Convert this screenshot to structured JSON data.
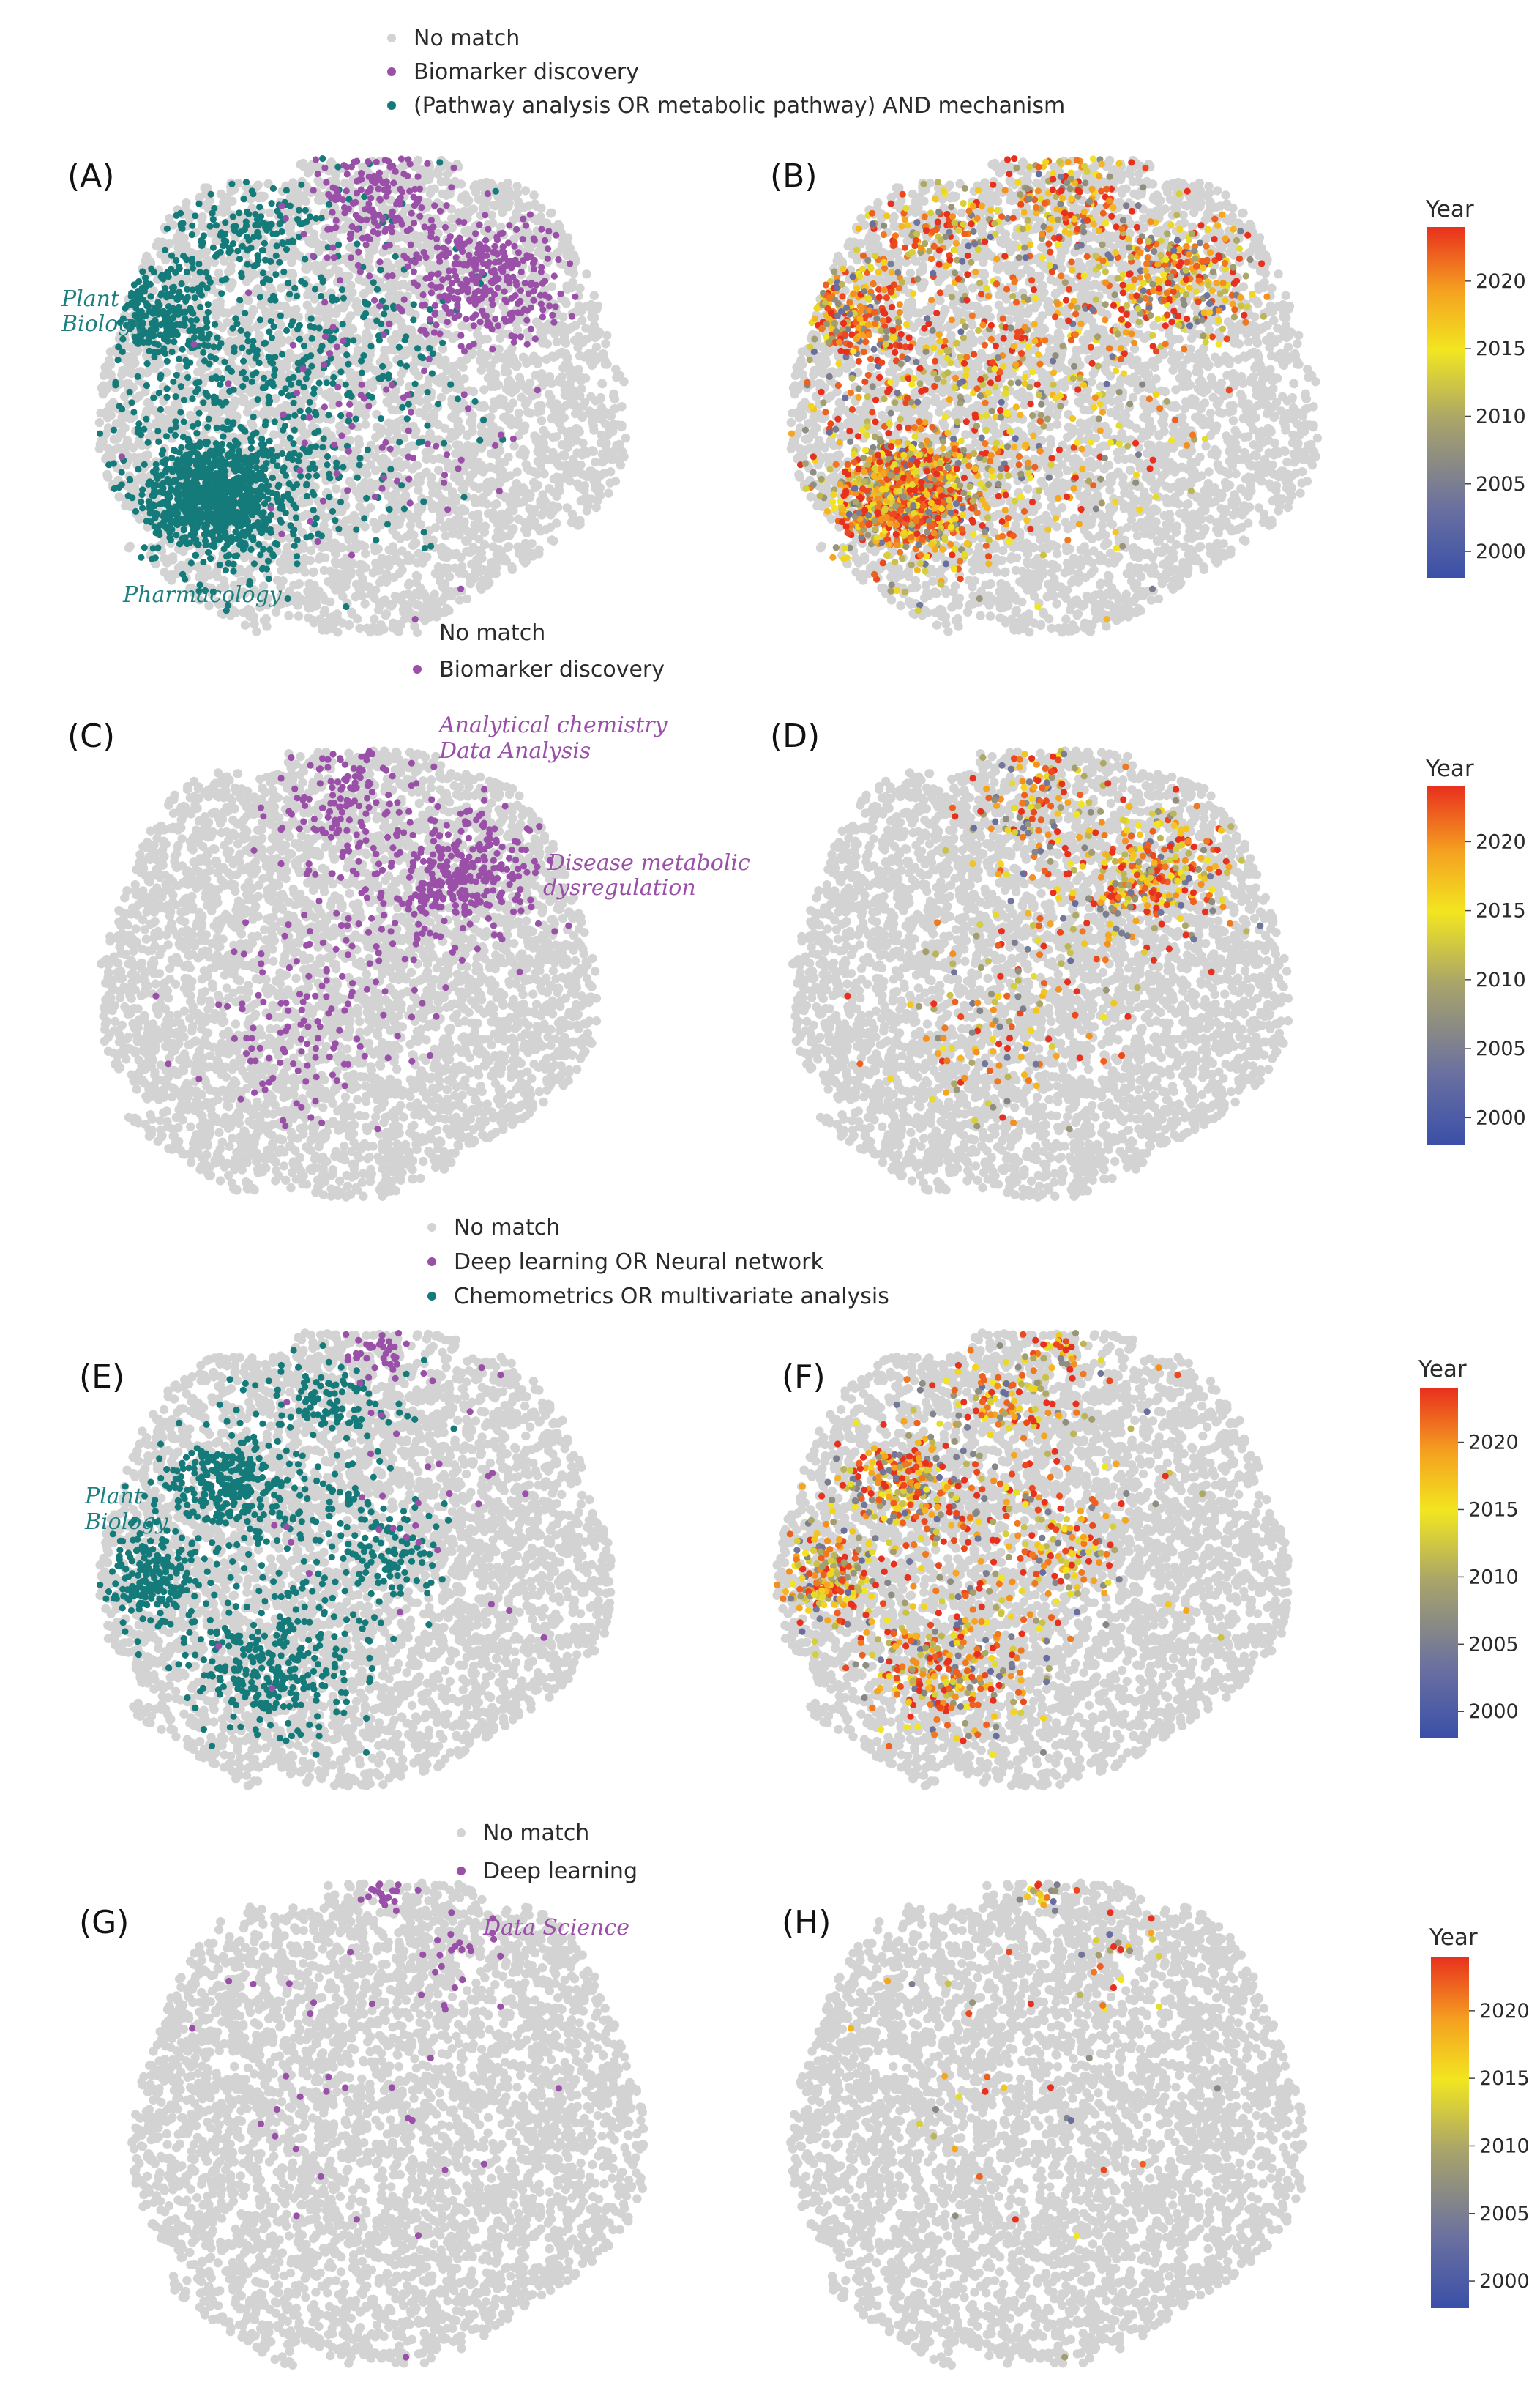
{
  "colors": {
    "no_match": "#d3d3d3",
    "purple": "#9a4fa8",
    "teal": "#157a7a",
    "text": "#2a2a2a",
    "anno_teal": "#1d7f7f",
    "anno_purple": "#9a4fa8"
  },
  "chart_data": [
    {
      "type": "scatter",
      "panel": "(A)",
      "legend": [
        {
          "label": "No match",
          "color": "#d3d3d3"
        },
        {
          "label": "Biomarker discovery",
          "color": "#9a4fa8"
        },
        {
          "label": "(Pathway analysis OR metabolic pathway) AND mechanism",
          "color": "#157a7a"
        }
      ],
      "annotations": [
        {
          "text": "Plant",
          "color": "#1d7f7f"
        },
        {
          "text": "Biology",
          "color": "#1d7f7f"
        },
        {
          "text": "Pharmacology",
          "color": "#1d7f7f"
        }
      ],
      "clusters": [
        {
          "color": "teal",
          "cx": 0.22,
          "cy": 0.72,
          "sx": 0.07,
          "sy": 0.06,
          "n": 900
        },
        {
          "color": "teal",
          "cx": 0.12,
          "cy": 0.35,
          "sx": 0.05,
          "sy": 0.05,
          "n": 220
        },
        {
          "color": "teal",
          "cx": 0.32,
          "cy": 0.45,
          "sx": 0.18,
          "sy": 0.22,
          "n": 650
        },
        {
          "color": "teal",
          "cx": 0.28,
          "cy": 0.18,
          "sx": 0.07,
          "sy": 0.05,
          "n": 90
        },
        {
          "color": "purple",
          "cx": 0.72,
          "cy": 0.28,
          "sx": 0.08,
          "sy": 0.07,
          "n": 320
        },
        {
          "color": "purple",
          "cx": 0.52,
          "cy": 0.1,
          "sx": 0.06,
          "sy": 0.07,
          "n": 180
        },
        {
          "color": "purple",
          "cx": 0.52,
          "cy": 0.55,
          "sx": 0.15,
          "sy": 0.15,
          "n": 80
        }
      ]
    },
    {
      "type": "scatter",
      "panel": "(B)",
      "color_by": "Year",
      "colorbar": {
        "title": "Year",
        "ticks": [
          2000,
          2005,
          2010,
          2015,
          2020
        ],
        "range": [
          1998,
          2024
        ]
      },
      "clusters_from": "(A)"
    },
    {
      "type": "scatter",
      "panel": "(C)",
      "legend": [
        {
          "label": "No match",
          "color": "#d3d3d3"
        },
        {
          "label": "Biomarker discovery",
          "color": "#9a4fa8"
        }
      ],
      "annotations": [
        {
          "text": "Analytical chemistry",
          "color": "#9a4fa8"
        },
        {
          "text": "Data Analysis",
          "color": "#9a4fa8"
        },
        {
          "text": "Disease metabolic",
          "color": "#9a4fa8"
        },
        {
          "text": "dysregulation",
          "color": "#9a4fa8"
        }
      ],
      "clusters": [
        {
          "color": "purple",
          "cx": 0.5,
          "cy": 0.12,
          "sx": 0.06,
          "sy": 0.08,
          "n": 160
        },
        {
          "color": "purple",
          "cx": 0.72,
          "cy": 0.3,
          "sx": 0.08,
          "sy": 0.07,
          "n": 280
        },
        {
          "color": "purple",
          "cx": 0.42,
          "cy": 0.68,
          "sx": 0.1,
          "sy": 0.08,
          "n": 80
        },
        {
          "color": "purple",
          "cx": 0.5,
          "cy": 0.45,
          "sx": 0.15,
          "sy": 0.15,
          "n": 80
        }
      ]
    },
    {
      "type": "scatter",
      "panel": "(D)",
      "color_by": "Year",
      "colorbar": {
        "title": "Year",
        "ticks": [
          2000,
          2005,
          2010,
          2015,
          2020
        ],
        "range": [
          1998,
          2024
        ]
      },
      "clusters_from": "(C)"
    },
    {
      "type": "scatter",
      "panel": "(E)",
      "legend": [
        {
          "label": "No match",
          "color": "#d3d3d3"
        },
        {
          "label": "Deep learning OR Neural network",
          "color": "#9a4fa8"
        },
        {
          "label": "Chemometrics OR multivariate analysis",
          "color": "#157a7a"
        }
      ],
      "annotations": [
        {
          "text": "Plant",
          "color": "#1d7f7f"
        },
        {
          "text": "Biology",
          "color": "#1d7f7f"
        }
      ],
      "clusters": [
        {
          "color": "teal",
          "cx": 0.1,
          "cy": 0.55,
          "sx": 0.04,
          "sy": 0.05,
          "n": 180
        },
        {
          "color": "teal",
          "cx": 0.25,
          "cy": 0.35,
          "sx": 0.06,
          "sy": 0.05,
          "n": 200
        },
        {
          "color": "teal",
          "cx": 0.35,
          "cy": 0.75,
          "sx": 0.08,
          "sy": 0.07,
          "n": 230
        },
        {
          "color": "teal",
          "cx": 0.35,
          "cy": 0.45,
          "sx": 0.15,
          "sy": 0.2,
          "n": 320
        },
        {
          "color": "teal",
          "cx": 0.45,
          "cy": 0.18,
          "sx": 0.05,
          "sy": 0.05,
          "n": 80
        },
        {
          "color": "teal",
          "cx": 0.55,
          "cy": 0.5,
          "sx": 0.05,
          "sy": 0.05,
          "n": 80
        },
        {
          "color": "purple",
          "cx": 0.55,
          "cy": 0.05,
          "sx": 0.03,
          "sy": 0.04,
          "n": 60
        },
        {
          "color": "purple",
          "cx": 0.6,
          "cy": 0.35,
          "sx": 0.15,
          "sy": 0.2,
          "n": 40
        }
      ]
    },
    {
      "type": "scatter",
      "panel": "(F)",
      "color_by": "Year",
      "colorbar": {
        "title": "Year",
        "ticks": [
          2000,
          2005,
          2010,
          2015,
          2020
        ],
        "range": [
          1998,
          2024
        ]
      },
      "clusters_from": "(E)"
    },
    {
      "type": "scatter",
      "panel": "(G)",
      "legend": [
        {
          "label": "No match",
          "color": "#d3d3d3"
        },
        {
          "label": "Deep learning",
          "color": "#9a4fa8"
        }
      ],
      "annotations": [
        {
          "text": "Data Science",
          "color": "#9a4fa8"
        }
      ],
      "clusters": [
        {
          "color": "purple",
          "cx": 0.5,
          "cy": 0.04,
          "sx": 0.025,
          "sy": 0.025,
          "n": 30
        },
        {
          "color": "purple",
          "cx": 0.62,
          "cy": 0.2,
          "sx": 0.08,
          "sy": 0.08,
          "n": 25
        },
        {
          "color": "purple",
          "cx": 0.45,
          "cy": 0.5,
          "sx": 0.22,
          "sy": 0.2,
          "n": 30
        }
      ]
    },
    {
      "type": "scatter",
      "panel": "(H)",
      "color_by": "Year",
      "colorbar": {
        "title": "Year",
        "ticks": [
          2000,
          2005,
          2010,
          2015,
          2020
        ],
        "range": [
          1998,
          2024
        ]
      },
      "clusters_from": "(G)"
    }
  ]
}
